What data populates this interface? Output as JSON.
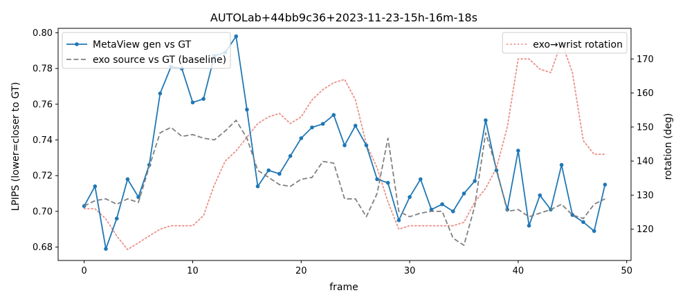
{
  "chart_data": {
    "type": "line",
    "title": "AUTOLab+44bb9c36+2023-11-23-15h-16m-18s",
    "xlabel": "frame",
    "ylabel": "LPIPS (lower=closer to GT)",
    "y2label": "rotation (deg)",
    "xlim": [
      -2.4,
      50.4
    ],
    "ylim": [
      0.6725,
      0.8025
    ],
    "y2lim": [
      110.8,
      179.0
    ],
    "xticks": [
      0,
      10,
      20,
      30,
      40,
      50
    ],
    "yticks": [
      0.68,
      0.7,
      0.72,
      0.74,
      0.76,
      0.78,
      0.8
    ],
    "y2ticks": [
      120,
      130,
      140,
      150,
      160,
      170
    ],
    "legend_left_position": "upper-left",
    "legend_right_position": "upper-right",
    "grid": false,
    "series": [
      {
        "name": "MetaView gen vs GT",
        "axis": "left",
        "style": "solid-marker",
        "color": "#1f77b4",
        "x": [
          0,
          1,
          2,
          3,
          4,
          5,
          6,
          7,
          8,
          9,
          10,
          11,
          12,
          13,
          14,
          15,
          16,
          17,
          18,
          19,
          20,
          21,
          22,
          23,
          24,
          25,
          26,
          27,
          28,
          29,
          30,
          31,
          32,
          33,
          34,
          35,
          36,
          37,
          38,
          39,
          40,
          41,
          42,
          43,
          44,
          45,
          46,
          47,
          48
        ],
        "values": [
          0.703,
          0.714,
          0.679,
          0.696,
          0.718,
          0.708,
          0.726,
          0.766,
          0.781,
          0.78,
          0.761,
          0.763,
          0.787,
          0.789,
          0.798,
          0.757,
          0.714,
          0.723,
          0.721,
          0.731,
          0.741,
          0.747,
          0.749,
          0.754,
          0.737,
          0.748,
          0.737,
          0.718,
          0.716,
          0.695,
          0.708,
          0.718,
          0.701,
          0.704,
          0.7,
          0.71,
          0.717,
          0.751,
          0.723,
          0.701,
          0.734,
          0.692,
          0.709,
          0.701,
          0.726,
          0.698,
          0.694,
          0.689,
          0.715
        ]
      },
      {
        "name": "exo source vs GT (baseline)",
        "axis": "left",
        "style": "dashed",
        "color": "#7f7f7f",
        "x": [
          0,
          1,
          2,
          3,
          4,
          5,
          6,
          7,
          8,
          9,
          10,
          11,
          12,
          13,
          14,
          15,
          16,
          17,
          18,
          19,
          20,
          21,
          22,
          23,
          24,
          25,
          26,
          27,
          28,
          29,
          30,
          31,
          32,
          33,
          34,
          35,
          36,
          37,
          38,
          39,
          40,
          41,
          42,
          43,
          44,
          45,
          46,
          47,
          48
        ],
        "values": [
          0.703,
          0.706,
          0.707,
          0.704,
          0.707,
          0.705,
          0.725,
          0.744,
          0.747,
          0.742,
          0.743,
          0.741,
          0.74,
          0.745,
          0.751,
          0.741,
          0.723,
          0.719,
          0.715,
          0.714,
          0.718,
          0.719,
          0.728,
          0.727,
          0.707,
          0.707,
          0.697,
          0.71,
          0.741,
          0.7,
          0.697,
          0.699,
          0.7,
          0.7,
          0.685,
          0.681,
          0.703,
          0.744,
          0.724,
          0.7,
          0.701,
          0.697,
          0.699,
          0.701,
          0.704,
          0.698,
          0.696,
          0.704,
          0.707
        ]
      },
      {
        "name": "exo→wrist rotation",
        "axis": "right",
        "style": "dotted",
        "color": "#e8847a",
        "x": [
          0,
          1,
          2,
          3,
          4,
          5,
          6,
          7,
          8,
          9,
          10,
          11,
          12,
          13,
          14,
          15,
          16,
          17,
          18,
          19,
          20,
          21,
          22,
          23,
          24,
          25,
          26,
          27,
          28,
          29,
          30,
          31,
          32,
          33,
          34,
          35,
          36,
          37,
          38,
          39,
          40,
          41,
          42,
          43,
          44,
          45,
          46,
          47,
          48
        ],
        "values": [
          126,
          126,
          123,
          118,
          114,
          116,
          118,
          120,
          121,
          121,
          121,
          124,
          133,
          140,
          143,
          147,
          151,
          153,
          154,
          151,
          153,
          158,
          161,
          163,
          164,
          158,
          145,
          138,
          128,
          120,
          121,
          121,
          121,
          121,
          121,
          122,
          128,
          132,
          138,
          150,
          170,
          170,
          167,
          166,
          175,
          166,
          146,
          142,
          142
        ]
      }
    ]
  }
}
